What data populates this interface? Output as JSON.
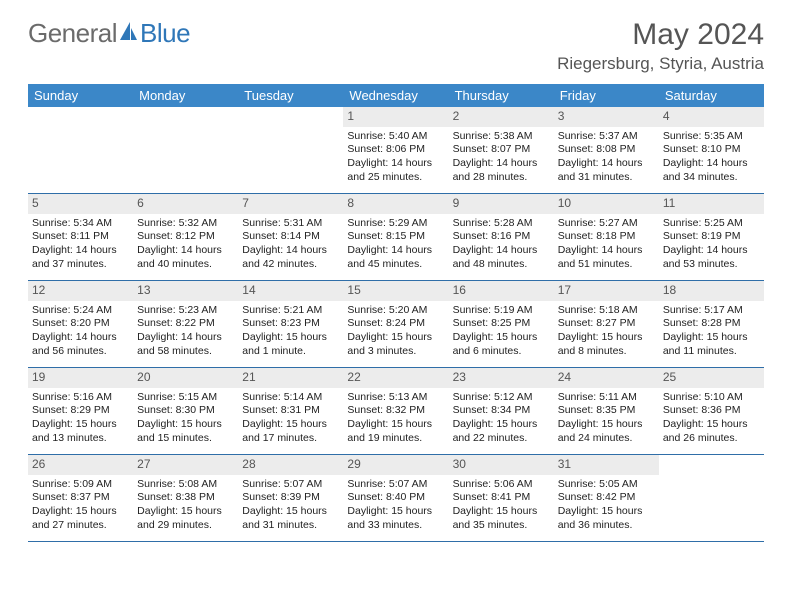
{
  "brand": {
    "part1": "General",
    "part2": "Blue"
  },
  "title": "May 2024",
  "location": "Riegersburg, Styria, Austria",
  "colors": {
    "header_bg": "#3b87c8",
    "header_text": "#ffffff",
    "daynum_bg": "#ececec",
    "daynum_text": "#555555",
    "cell_text": "#222222",
    "rule": "#2f6ea8",
    "title_text": "#555555",
    "logo_gray": "#6b6b6b",
    "logo_blue": "#2f77b8"
  },
  "day_headers": [
    "Sunday",
    "Monday",
    "Tuesday",
    "Wednesday",
    "Thursday",
    "Friday",
    "Saturday"
  ],
  "weeks": [
    [
      {
        "empty": true
      },
      {
        "empty": true
      },
      {
        "empty": true
      },
      {
        "n": "1",
        "sr": "Sunrise: 5:40 AM",
        "ss": "Sunset: 8:06 PM",
        "d1": "Daylight: 14 hours",
        "d2": "and 25 minutes."
      },
      {
        "n": "2",
        "sr": "Sunrise: 5:38 AM",
        "ss": "Sunset: 8:07 PM",
        "d1": "Daylight: 14 hours",
        "d2": "and 28 minutes."
      },
      {
        "n": "3",
        "sr": "Sunrise: 5:37 AM",
        "ss": "Sunset: 8:08 PM",
        "d1": "Daylight: 14 hours",
        "d2": "and 31 minutes."
      },
      {
        "n": "4",
        "sr": "Sunrise: 5:35 AM",
        "ss": "Sunset: 8:10 PM",
        "d1": "Daylight: 14 hours",
        "d2": "and 34 minutes."
      }
    ],
    [
      {
        "n": "5",
        "sr": "Sunrise: 5:34 AM",
        "ss": "Sunset: 8:11 PM",
        "d1": "Daylight: 14 hours",
        "d2": "and 37 minutes."
      },
      {
        "n": "6",
        "sr": "Sunrise: 5:32 AM",
        "ss": "Sunset: 8:12 PM",
        "d1": "Daylight: 14 hours",
        "d2": "and 40 minutes."
      },
      {
        "n": "7",
        "sr": "Sunrise: 5:31 AM",
        "ss": "Sunset: 8:14 PM",
        "d1": "Daylight: 14 hours",
        "d2": "and 42 minutes."
      },
      {
        "n": "8",
        "sr": "Sunrise: 5:29 AM",
        "ss": "Sunset: 8:15 PM",
        "d1": "Daylight: 14 hours",
        "d2": "and 45 minutes."
      },
      {
        "n": "9",
        "sr": "Sunrise: 5:28 AM",
        "ss": "Sunset: 8:16 PM",
        "d1": "Daylight: 14 hours",
        "d2": "and 48 minutes."
      },
      {
        "n": "10",
        "sr": "Sunrise: 5:27 AM",
        "ss": "Sunset: 8:18 PM",
        "d1": "Daylight: 14 hours",
        "d2": "and 51 minutes."
      },
      {
        "n": "11",
        "sr": "Sunrise: 5:25 AM",
        "ss": "Sunset: 8:19 PM",
        "d1": "Daylight: 14 hours",
        "d2": "and 53 minutes."
      }
    ],
    [
      {
        "n": "12",
        "sr": "Sunrise: 5:24 AM",
        "ss": "Sunset: 8:20 PM",
        "d1": "Daylight: 14 hours",
        "d2": "and 56 minutes."
      },
      {
        "n": "13",
        "sr": "Sunrise: 5:23 AM",
        "ss": "Sunset: 8:22 PM",
        "d1": "Daylight: 14 hours",
        "d2": "and 58 minutes."
      },
      {
        "n": "14",
        "sr": "Sunrise: 5:21 AM",
        "ss": "Sunset: 8:23 PM",
        "d1": "Daylight: 15 hours",
        "d2": "and 1 minute."
      },
      {
        "n": "15",
        "sr": "Sunrise: 5:20 AM",
        "ss": "Sunset: 8:24 PM",
        "d1": "Daylight: 15 hours",
        "d2": "and 3 minutes."
      },
      {
        "n": "16",
        "sr": "Sunrise: 5:19 AM",
        "ss": "Sunset: 8:25 PM",
        "d1": "Daylight: 15 hours",
        "d2": "and 6 minutes."
      },
      {
        "n": "17",
        "sr": "Sunrise: 5:18 AM",
        "ss": "Sunset: 8:27 PM",
        "d1": "Daylight: 15 hours",
        "d2": "and 8 minutes."
      },
      {
        "n": "18",
        "sr": "Sunrise: 5:17 AM",
        "ss": "Sunset: 8:28 PM",
        "d1": "Daylight: 15 hours",
        "d2": "and 11 minutes."
      }
    ],
    [
      {
        "n": "19",
        "sr": "Sunrise: 5:16 AM",
        "ss": "Sunset: 8:29 PM",
        "d1": "Daylight: 15 hours",
        "d2": "and 13 minutes."
      },
      {
        "n": "20",
        "sr": "Sunrise: 5:15 AM",
        "ss": "Sunset: 8:30 PM",
        "d1": "Daylight: 15 hours",
        "d2": "and 15 minutes."
      },
      {
        "n": "21",
        "sr": "Sunrise: 5:14 AM",
        "ss": "Sunset: 8:31 PM",
        "d1": "Daylight: 15 hours",
        "d2": "and 17 minutes."
      },
      {
        "n": "22",
        "sr": "Sunrise: 5:13 AM",
        "ss": "Sunset: 8:32 PM",
        "d1": "Daylight: 15 hours",
        "d2": "and 19 minutes."
      },
      {
        "n": "23",
        "sr": "Sunrise: 5:12 AM",
        "ss": "Sunset: 8:34 PM",
        "d1": "Daylight: 15 hours",
        "d2": "and 22 minutes."
      },
      {
        "n": "24",
        "sr": "Sunrise: 5:11 AM",
        "ss": "Sunset: 8:35 PM",
        "d1": "Daylight: 15 hours",
        "d2": "and 24 minutes."
      },
      {
        "n": "25",
        "sr": "Sunrise: 5:10 AM",
        "ss": "Sunset: 8:36 PM",
        "d1": "Daylight: 15 hours",
        "d2": "and 26 minutes."
      }
    ],
    [
      {
        "n": "26",
        "sr": "Sunrise: 5:09 AM",
        "ss": "Sunset: 8:37 PM",
        "d1": "Daylight: 15 hours",
        "d2": "and 27 minutes."
      },
      {
        "n": "27",
        "sr": "Sunrise: 5:08 AM",
        "ss": "Sunset: 8:38 PM",
        "d1": "Daylight: 15 hours",
        "d2": "and 29 minutes."
      },
      {
        "n": "28",
        "sr": "Sunrise: 5:07 AM",
        "ss": "Sunset: 8:39 PM",
        "d1": "Daylight: 15 hours",
        "d2": "and 31 minutes."
      },
      {
        "n": "29",
        "sr": "Sunrise: 5:07 AM",
        "ss": "Sunset: 8:40 PM",
        "d1": "Daylight: 15 hours",
        "d2": "and 33 minutes."
      },
      {
        "n": "30",
        "sr": "Sunrise: 5:06 AM",
        "ss": "Sunset: 8:41 PM",
        "d1": "Daylight: 15 hours",
        "d2": "and 35 minutes."
      },
      {
        "n": "31",
        "sr": "Sunrise: 5:05 AM",
        "ss": "Sunset: 8:42 PM",
        "d1": "Daylight: 15 hours",
        "d2": "and 36 minutes."
      },
      {
        "empty": true
      }
    ]
  ]
}
